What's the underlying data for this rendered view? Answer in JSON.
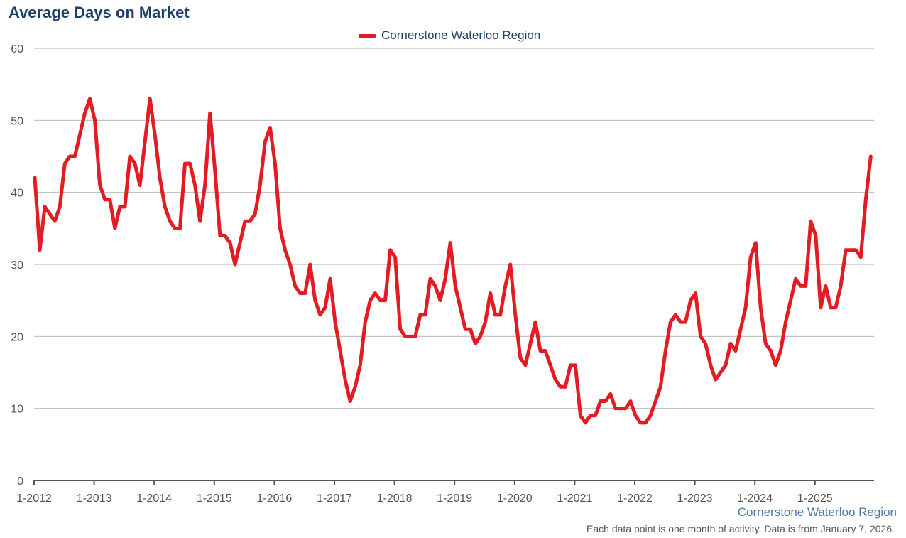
{
  "title": "Average Days on Market",
  "legend": {
    "label": "Cornerstone Waterloo Region"
  },
  "footer": {
    "source": "Cornerstone Waterloo Region",
    "note": "Each data point is one month of activity. Data is from January 7, 2026."
  },
  "colors": {
    "series": "#e31b23",
    "title": "#1f3f66",
    "grid": "#bbbbbb",
    "source": "#4f79a6"
  },
  "chart_data": {
    "type": "line",
    "title": "Average Days on Market",
    "xlabel": "",
    "ylabel": "",
    "ylim": [
      0,
      60
    ],
    "yticks": [
      0,
      10,
      20,
      30,
      40,
      50,
      60
    ],
    "xticks": [
      "1-2012",
      "1-2013",
      "1-2014",
      "1-2015",
      "1-2016",
      "1-2017",
      "1-2018",
      "1-2019",
      "1-2020",
      "1-2021",
      "1-2022",
      "1-2023",
      "1-2024",
      "1-2025"
    ],
    "grid": true,
    "legend_position": "top-center",
    "x_start": "1-2012",
    "x_end": "12-2025",
    "series": [
      {
        "name": "Cornerstone Waterloo Region",
        "values": [
          42,
          32,
          38,
          37,
          36,
          38,
          44,
          45,
          45,
          48,
          51,
          53,
          50,
          41,
          39,
          39,
          35,
          38,
          38,
          45,
          44,
          41,
          47,
          53,
          48,
          42,
          38,
          36,
          35,
          35,
          44,
          44,
          41,
          36,
          41,
          51,
          43,
          34,
          34,
          33,
          30,
          33,
          36,
          36,
          37,
          41,
          47,
          49,
          44,
          35,
          32,
          30,
          27,
          26,
          26,
          30,
          25,
          23,
          24,
          28,
          22,
          18,
          14,
          11,
          13,
          16,
          22,
          25,
          26,
          25,
          25,
          32,
          31,
          21,
          20,
          20,
          20,
          23,
          23,
          28,
          27,
          25,
          28,
          33,
          27,
          24,
          21,
          21,
          19,
          20,
          22,
          26,
          23,
          23,
          27,
          30,
          23,
          17,
          16,
          19,
          22,
          18,
          18,
          16,
          14,
          13,
          13,
          16,
          16,
          9,
          8,
          9,
          9,
          11,
          11,
          12,
          10,
          10,
          10,
          11,
          9,
          8,
          8,
          9,
          11,
          13,
          18,
          22,
          23,
          22,
          22,
          25,
          26,
          20,
          19,
          16,
          14,
          15,
          16,
          19,
          18,
          21,
          24,
          31,
          33,
          24,
          19,
          18,
          16,
          18,
          22,
          25,
          28,
          27,
          27,
          36,
          34,
          24,
          27,
          24,
          24,
          27,
          32,
          32,
          32,
          31,
          39,
          45
        ]
      }
    ]
  }
}
